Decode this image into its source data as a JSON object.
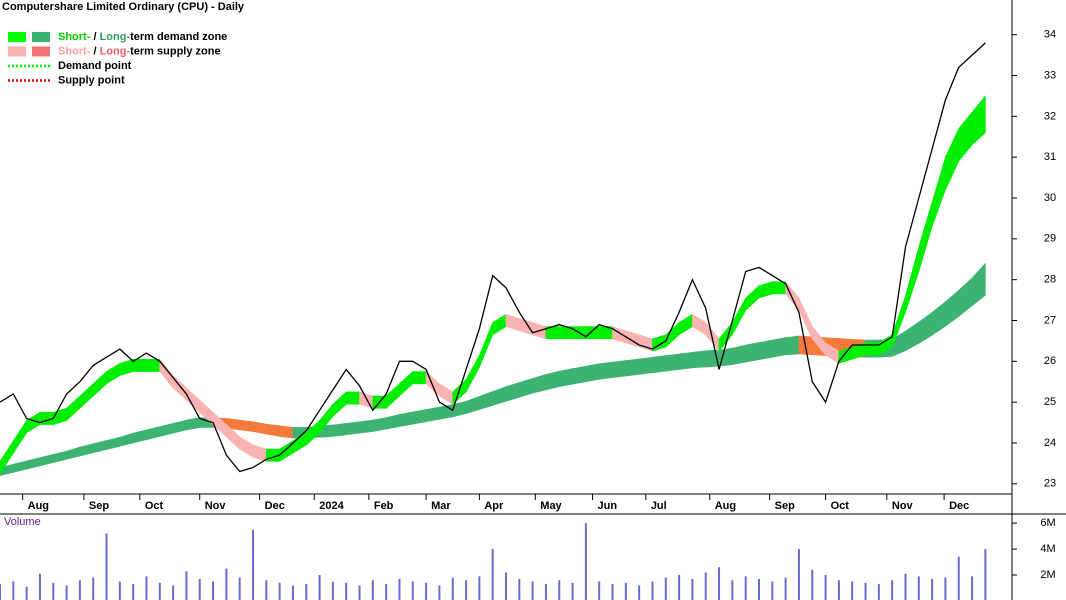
{
  "chart_data": {
    "type": "zone_stock",
    "title": "Computershare Limited Ordinary (CPU) - Daily",
    "legend": [
      {
        "parts": [
          "Short-",
          " / ",
          "Long-",
          "term demand zone"
        ],
        "part_colors": [
          "#00cc00",
          "#000000",
          "#2e9e5e",
          "#000000"
        ],
        "swatches": [
          "#00ff00",
          "#3cb371"
        ]
      },
      {
        "parts": [
          "Short-",
          " / ",
          "Long-",
          "term supply zone"
        ],
        "part_colors": [
          "#f4a0a0",
          "#000000",
          "#f06060",
          "#000000"
        ],
        "swatches": [
          "#f9b3b3",
          "#f07272"
        ]
      },
      {
        "parts": [
          "Demand point"
        ],
        "part_colors": [
          "#000000"
        ],
        "dots": "#00e600"
      },
      {
        "parts": [
          "Supply point"
        ],
        "part_colors": [
          "#000000"
        ],
        "dots": "#e60000"
      }
    ],
    "x": [
      0,
      1,
      2,
      3,
      4,
      5,
      6,
      7,
      8,
      9,
      10,
      11,
      12,
      13,
      14,
      15,
      16,
      17,
      18,
      19,
      20,
      21,
      22,
      23,
      24,
      25,
      26,
      27,
      28,
      29,
      30,
      31,
      32,
      33,
      34,
      35,
      36,
      37,
      38,
      39,
      40,
      41,
      42,
      43,
      44,
      45,
      46,
      47,
      48,
      49,
      50,
      51,
      52,
      53,
      54,
      55,
      56,
      57,
      58,
      59,
      60,
      61,
      62,
      63,
      64,
      65,
      66,
      67,
      68,
      69,
      70,
      71,
      72,
      73,
      74
    ],
    "xlim": [
      0,
      76
    ],
    "xticks": [
      {
        "value": 1.7,
        "label": "Aug"
      },
      {
        "value": 6.3,
        "label": "Sep"
      },
      {
        "value": 10.5,
        "label": "Oct"
      },
      {
        "value": 15.0,
        "label": "Nov"
      },
      {
        "value": 19.5,
        "label": "Dec"
      },
      {
        "value": 23.6,
        "label": "2024"
      },
      {
        "value": 27.7,
        "label": "Feb"
      },
      {
        "value": 32.0,
        "label": "Mar"
      },
      {
        "value": 36.0,
        "label": "Apr"
      },
      {
        "value": 40.2,
        "label": "May"
      },
      {
        "value": 44.5,
        "label": "Jun"
      },
      {
        "value": 48.5,
        "label": "Jul"
      },
      {
        "value": 53.3,
        "label": "Aug"
      },
      {
        "value": 57.8,
        "label": "Sep"
      },
      {
        "value": 62.0,
        "label": "Oct"
      },
      {
        "value": 66.6,
        "label": "Nov"
      },
      {
        "value": 70.9,
        "label": "Dec"
      }
    ],
    "ylim": [
      22.75,
      34.85
    ],
    "yticks": [
      23,
      24,
      25,
      26,
      27,
      28,
      29,
      30,
      31,
      32,
      33,
      34
    ],
    "price": {
      "name": "Close",
      "color": "#000000",
      "values": [
        25.0,
        25.2,
        24.6,
        24.5,
        24.6,
        25.2,
        25.5,
        25.9,
        26.1,
        26.3,
        26.0,
        26.2,
        26.0,
        25.6,
        25.2,
        24.6,
        24.5,
        23.7,
        23.3,
        23.4,
        23.6,
        23.7,
        24.0,
        24.3,
        24.8,
        25.3,
        25.8,
        25.4,
        24.8,
        25.2,
        26.0,
        26.0,
        25.8,
        25.0,
        24.8,
        25.8,
        26.8,
        28.1,
        27.8,
        27.2,
        26.7,
        26.8,
        26.9,
        26.8,
        26.6,
        26.9,
        26.8,
        26.6,
        26.4,
        26.3,
        26.5,
        27.2,
        28.0,
        27.3,
        25.8,
        27.0,
        28.2,
        28.3,
        28.1,
        27.9,
        27.2,
        25.5,
        25.0,
        26.0,
        26.4,
        26.4,
        26.4,
        26.6,
        28.8,
        30.0,
        31.2,
        32.4,
        33.2,
        33.5,
        33.8
      ]
    },
    "zones": [
      {
        "name": "Long-term zone",
        "rising_color": "#3cb371",
        "falling_color": "#f47a3c",
        "lower": [
          23.2,
          23.28,
          23.36,
          23.44,
          23.52,
          23.6,
          23.68,
          23.76,
          23.84,
          23.92,
          24.0,
          24.08,
          24.16,
          24.24,
          24.32,
          24.38,
          24.38,
          24.36,
          24.32,
          24.28,
          24.22,
          24.16,
          24.12,
          24.12,
          24.14,
          24.16,
          24.2,
          24.24,
          24.28,
          24.34,
          24.4,
          24.46,
          24.52,
          24.58,
          24.64,
          24.72,
          24.82,
          24.92,
          25.02,
          25.12,
          25.22,
          25.3,
          25.38,
          25.44,
          25.5,
          25.56,
          25.6,
          25.64,
          25.68,
          25.72,
          25.76,
          25.8,
          25.84,
          25.86,
          25.88,
          25.92,
          25.98,
          26.04,
          26.1,
          26.16,
          26.18,
          26.16,
          26.14,
          26.12,
          26.1,
          26.1,
          26.1,
          26.12,
          26.26,
          26.44,
          26.64,
          26.86,
          27.1,
          27.36,
          27.62
        ],
        "upper": [
          23.4,
          23.48,
          23.56,
          23.64,
          23.72,
          23.8,
          23.9,
          23.98,
          24.06,
          24.14,
          24.24,
          24.32,
          24.4,
          24.48,
          24.56,
          24.62,
          24.62,
          24.6,
          24.56,
          24.52,
          24.46,
          24.42,
          24.38,
          24.38,
          24.42,
          24.44,
          24.48,
          24.52,
          24.56,
          24.62,
          24.7,
          24.76,
          24.82,
          24.88,
          24.94,
          25.02,
          25.14,
          25.26,
          25.38,
          25.48,
          25.58,
          25.68,
          25.76,
          25.82,
          25.88,
          25.94,
          25.98,
          26.02,
          26.06,
          26.1,
          26.14,
          26.18,
          26.22,
          26.26,
          26.28,
          26.32,
          26.4,
          26.46,
          26.52,
          26.58,
          26.62,
          26.6,
          26.58,
          26.56,
          26.54,
          26.52,
          26.52,
          26.54,
          26.74,
          26.96,
          27.2,
          27.46,
          27.74,
          28.04,
          28.4
        ]
      },
      {
        "name": "Short-term zone",
        "rising_color": "#00ee00",
        "falling_color": "#f9b3b3",
        "lower": [
          23.25,
          23.75,
          24.25,
          24.45,
          24.45,
          24.55,
          24.85,
          25.15,
          25.45,
          25.65,
          25.75,
          25.75,
          25.75,
          25.35,
          25.05,
          24.75,
          24.45,
          24.15,
          23.85,
          23.65,
          23.55,
          23.55,
          23.75,
          23.95,
          24.25,
          24.65,
          24.95,
          24.95,
          24.85,
          24.85,
          25.15,
          25.45,
          25.45,
          25.15,
          24.95,
          25.25,
          25.85,
          26.65,
          26.85,
          26.75,
          26.65,
          26.55,
          26.55,
          26.55,
          26.55,
          26.55,
          26.55,
          26.45,
          26.35,
          26.25,
          26.35,
          26.65,
          26.85,
          26.65,
          26.25,
          26.65,
          27.25,
          27.55,
          27.65,
          27.65,
          27.25,
          26.55,
          26.15,
          25.95,
          26.05,
          26.15,
          26.15,
          26.35,
          27.2,
          28.2,
          29.3,
          30.2,
          30.9,
          31.3,
          31.6
        ],
        "upper": [
          23.55,
          24.05,
          24.55,
          24.75,
          24.75,
          24.85,
          25.15,
          25.45,
          25.75,
          25.95,
          26.05,
          26.05,
          26.05,
          25.65,
          25.35,
          25.05,
          24.75,
          24.45,
          24.15,
          23.95,
          23.85,
          23.85,
          24.05,
          24.25,
          24.55,
          24.95,
          25.25,
          25.25,
          25.15,
          25.15,
          25.45,
          25.75,
          25.75,
          25.45,
          25.25,
          25.55,
          26.15,
          26.95,
          27.15,
          27.05,
          26.95,
          26.85,
          26.85,
          26.85,
          26.85,
          26.85,
          26.85,
          26.75,
          26.65,
          26.55,
          26.65,
          26.95,
          27.15,
          26.95,
          26.55,
          26.95,
          27.55,
          27.85,
          27.95,
          27.95,
          27.55,
          26.85,
          26.45,
          26.25,
          26.35,
          26.45,
          26.45,
          26.65,
          27.6,
          28.8,
          29.9,
          31.0,
          31.7,
          32.1,
          32.5
        ]
      }
    ],
    "volume": {
      "title": "Volume",
      "color": "#6a6acd",
      "values": [
        1300000,
        1500000,
        1100000,
        2100000,
        1400000,
        1200000,
        1600000,
        1800000,
        5200000,
        1500000,
        1300000,
        1900000,
        1400000,
        1200000,
        2300000,
        1700000,
        1500000,
        2500000,
        1800000,
        5500000,
        1600000,
        1400000,
        1200000,
        1300000,
        2000000,
        1500000,
        1400000,
        1200000,
        1600000,
        1300000,
        1700000,
        1500000,
        1400000,
        1200000,
        1800000,
        1600000,
        1900000,
        4000000,
        2200000,
        1700000,
        1500000,
        1300000,
        1600000,
        1400000,
        6000000,
        1500000,
        1300000,
        1400000,
        1200000,
        1500000,
        1800000,
        2000000,
        1700000,
        2200000,
        2600000,
        1600000,
        1900000,
        1700000,
        1500000,
        1800000,
        4000000,
        2400000,
        2000000,
        1600000,
        1500000,
        1400000,
        1300000,
        1600000,
        2100000,
        1900000,
        1700000,
        1800000,
        3400000,
        1900000,
        4000000
      ],
      "ylim": [
        0,
        6700000
      ],
      "yticks": [
        {
          "value": 2000000,
          "label": "2M"
        },
        {
          "value": 4000000,
          "label": "4M"
        },
        {
          "value": 6000000,
          "label": "6M"
        }
      ]
    }
  }
}
